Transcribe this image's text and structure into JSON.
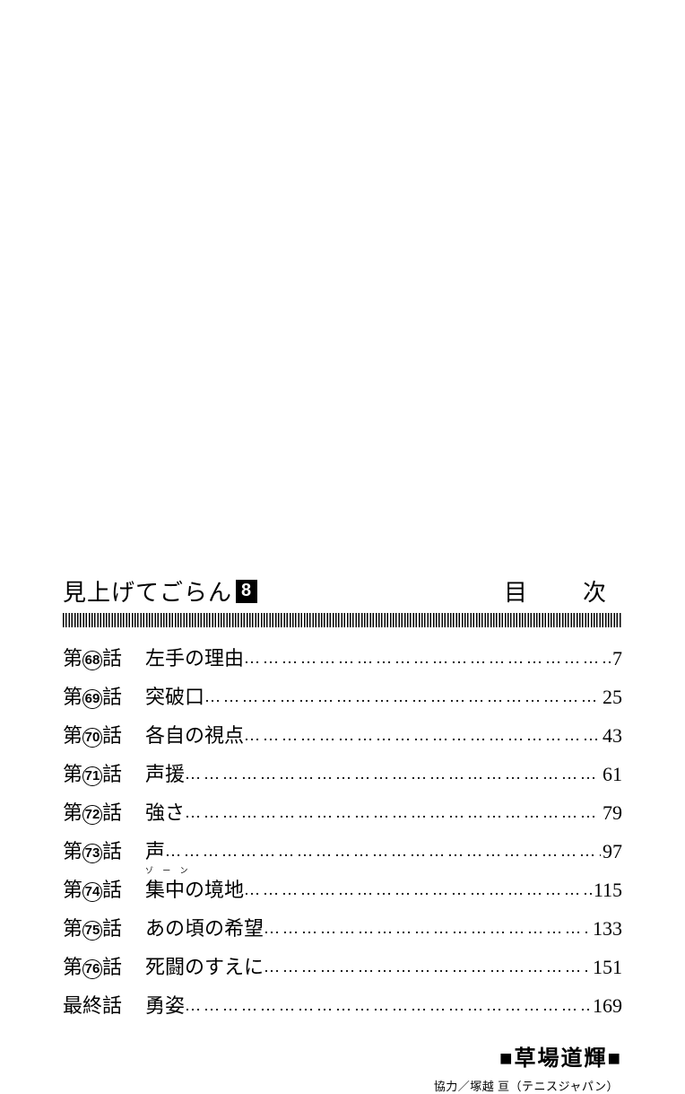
{
  "header": {
    "title": "見上げてごらん",
    "volume": "8",
    "contents_label": "目　次"
  },
  "toc": [
    {
      "prefix": "第",
      "num": "68",
      "suffix": "話",
      "title": "左手の理由",
      "ruby": "",
      "page": "7"
    },
    {
      "prefix": "第",
      "num": "69",
      "suffix": "話",
      "title": "突破口",
      "ruby": "",
      "page": "25"
    },
    {
      "prefix": "第",
      "num": "70",
      "suffix": "話",
      "title": "各自の視点",
      "ruby": "",
      "page": "43"
    },
    {
      "prefix": "第",
      "num": "71",
      "suffix": "話",
      "title": "声援",
      "ruby": "",
      "page": "61"
    },
    {
      "prefix": "第",
      "num": "72",
      "suffix": "話",
      "title": "強さ",
      "ruby": "",
      "page": "79"
    },
    {
      "prefix": "第",
      "num": "73",
      "suffix": "話",
      "title": "声",
      "ruby": "",
      "page": "97"
    },
    {
      "prefix": "第",
      "num": "74",
      "suffix": "話",
      "title": "集中の境地",
      "ruby": "ゾ ー ン",
      "page": "115"
    },
    {
      "prefix": "第",
      "num": "75",
      "suffix": "話",
      "title": "あの頃の希望",
      "ruby": "",
      "page": "133"
    },
    {
      "prefix": "第",
      "num": "76",
      "suffix": "話",
      "title": "死闘のすえに",
      "ruby": "",
      "page": "151"
    },
    {
      "prefix": "",
      "num": "",
      "suffix": "最終話",
      "title": "勇姿",
      "ruby": "",
      "page": "169"
    }
  ],
  "author": {
    "name": "草場道輝",
    "credit": "協力／塚越 亘（テニスジャパン）"
  },
  "style": {
    "text_color": "#000000",
    "background_color": "#ffffff",
    "title_fontsize": 26,
    "row_fontsize": 22,
    "author_fontsize": 24,
    "credit_fontsize": 13
  }
}
